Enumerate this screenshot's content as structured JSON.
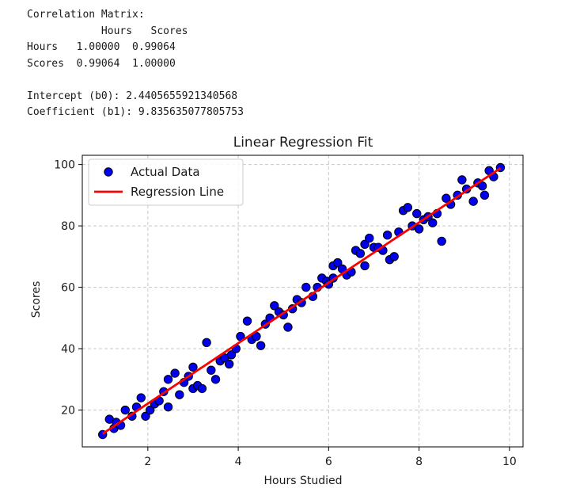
{
  "console": {
    "lines": [
      "Correlation Matrix:",
      "            Hours   Scores",
      "Hours   1.00000  0.99064",
      "Scores  0.99064  1.00000",
      "",
      "Intercept (b0): 2.4405655921340568",
      "Coefficient (b1): 9.835635077805753"
    ]
  },
  "chart_data": {
    "type": "scatter",
    "title": "Linear Regression Fit",
    "xlabel": "Hours Studied",
    "ylabel": "Scores",
    "xlim": [
      0.55,
      10.3
    ],
    "ylim": [
      8,
      103
    ],
    "xticks": [
      2,
      4,
      6,
      8,
      10
    ],
    "yticks": [
      20,
      40,
      60,
      80,
      100
    ],
    "grid": true,
    "legend_position": "top-left",
    "series": [
      {
        "name": "Actual Data",
        "kind": "scatter",
        "color": "#0000ee",
        "edge_color": "#000000",
        "points": [
          [
            1.0,
            12
          ],
          [
            1.15,
            17
          ],
          [
            1.25,
            14
          ],
          [
            1.3,
            16
          ],
          [
            1.4,
            15
          ],
          [
            1.5,
            20
          ],
          [
            1.65,
            18
          ],
          [
            1.75,
            21
          ],
          [
            1.85,
            24
          ],
          [
            1.95,
            18
          ],
          [
            2.05,
            20
          ],
          [
            2.15,
            22
          ],
          [
            2.25,
            23
          ],
          [
            2.35,
            26
          ],
          [
            2.45,
            21
          ],
          [
            2.45,
            30
          ],
          [
            2.6,
            32
          ],
          [
            2.7,
            25
          ],
          [
            2.8,
            29
          ],
          [
            2.9,
            31
          ],
          [
            3.0,
            27
          ],
          [
            3.0,
            34
          ],
          [
            3.1,
            28
          ],
          [
            3.2,
            27
          ],
          [
            3.3,
            42
          ],
          [
            3.4,
            33
          ],
          [
            3.5,
            30
          ],
          [
            3.6,
            36
          ],
          [
            3.7,
            37
          ],
          [
            3.8,
            35
          ],
          [
            3.85,
            38
          ],
          [
            3.95,
            40
          ],
          [
            4.05,
            44
          ],
          [
            4.2,
            49
          ],
          [
            4.3,
            43
          ],
          [
            4.4,
            44
          ],
          [
            4.5,
            41
          ],
          [
            4.6,
            48
          ],
          [
            4.7,
            50
          ],
          [
            4.8,
            54
          ],
          [
            4.9,
            52
          ],
          [
            5.0,
            51
          ],
          [
            5.1,
            47
          ],
          [
            5.2,
            53
          ],
          [
            5.3,
            56
          ],
          [
            5.4,
            55
          ],
          [
            5.5,
            60
          ],
          [
            5.65,
            57
          ],
          [
            5.75,
            60
          ],
          [
            5.85,
            63
          ],
          [
            5.95,
            62
          ],
          [
            6.0,
            61
          ],
          [
            6.1,
            63
          ],
          [
            6.1,
            67
          ],
          [
            6.2,
            68
          ],
          [
            6.3,
            66
          ],
          [
            6.4,
            64
          ],
          [
            6.5,
            65
          ],
          [
            6.6,
            72
          ],
          [
            6.7,
            71
          ],
          [
            6.8,
            67
          ],
          [
            6.8,
            74
          ],
          [
            6.9,
            76
          ],
          [
            7.0,
            73
          ],
          [
            7.1,
            73
          ],
          [
            7.2,
            72
          ],
          [
            7.3,
            77
          ],
          [
            7.35,
            69
          ],
          [
            7.45,
            70
          ],
          [
            7.55,
            78
          ],
          [
            7.65,
            85
          ],
          [
            7.75,
            86
          ],
          [
            7.85,
            80
          ],
          [
            7.95,
            84
          ],
          [
            8.0,
            79
          ],
          [
            8.1,
            82
          ],
          [
            8.2,
            83
          ],
          [
            8.3,
            81
          ],
          [
            8.4,
            84
          ],
          [
            8.5,
            75
          ],
          [
            8.6,
            89
          ],
          [
            8.7,
            87
          ],
          [
            8.85,
            90
          ],
          [
            8.95,
            95
          ],
          [
            9.05,
            92
          ],
          [
            9.2,
            88
          ],
          [
            9.3,
            94
          ],
          [
            9.4,
            93
          ],
          [
            9.45,
            90
          ],
          [
            9.55,
            98
          ],
          [
            9.65,
            96
          ],
          [
            9.8,
            99
          ]
        ]
      },
      {
        "name": "Regression Line",
        "kind": "line",
        "color": "#ff0000",
        "points": [
          [
            1.0,
            12.28
          ],
          [
            9.8,
            98.83
          ]
        ]
      }
    ]
  }
}
